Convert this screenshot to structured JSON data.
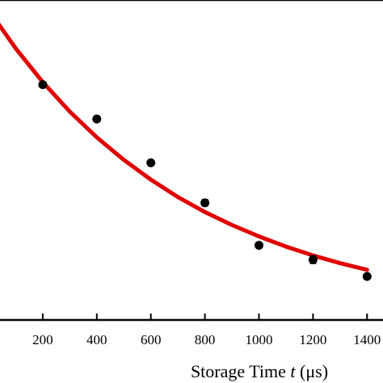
{
  "chart_data": {
    "type": "scatter",
    "title": "",
    "xlabel": "Storage Time t (μs)",
    "xlabel_parts": {
      "prefix": "Storage Time ",
      "italic": "t",
      "suffix": " (μs)"
    },
    "ylabel": "",
    "xlim": [
      0,
      1400
    ],
    "xticks": [
      200,
      400,
      600,
      800,
      1000,
      1200,
      1400
    ],
    "xtick_labels": [
      "200",
      "400",
      "600",
      "800",
      "1000",
      "1200",
      "1400"
    ],
    "grid": false,
    "series": [
      {
        "type": "scatter",
        "marker": "filled-circle",
        "color": "#000000",
        "x": [
          200,
          400,
          600,
          800,
          1000,
          1200,
          1400
        ],
        "y": [
          0.741,
          0.633,
          0.495,
          0.369,
          0.235,
          0.19,
          0.137
        ],
        "yerr": [
          0.008,
          0.008,
          0.008,
          0.01,
          0.008,
          0.012,
          0.008
        ]
      },
      {
        "type": "line",
        "color": "#e00000",
        "fit": "exponential decay",
        "x": [
          0,
          100,
          200,
          300,
          400,
          500,
          600,
          700,
          800,
          900,
          1000,
          1100,
          1200,
          1300,
          1400
        ],
        "y": [
          0.976,
          0.855,
          0.749,
          0.656,
          0.575,
          0.504,
          0.442,
          0.387,
          0.34,
          0.299,
          0.263,
          0.231,
          0.203,
          0.179,
          0.158
        ]
      }
    ]
  }
}
